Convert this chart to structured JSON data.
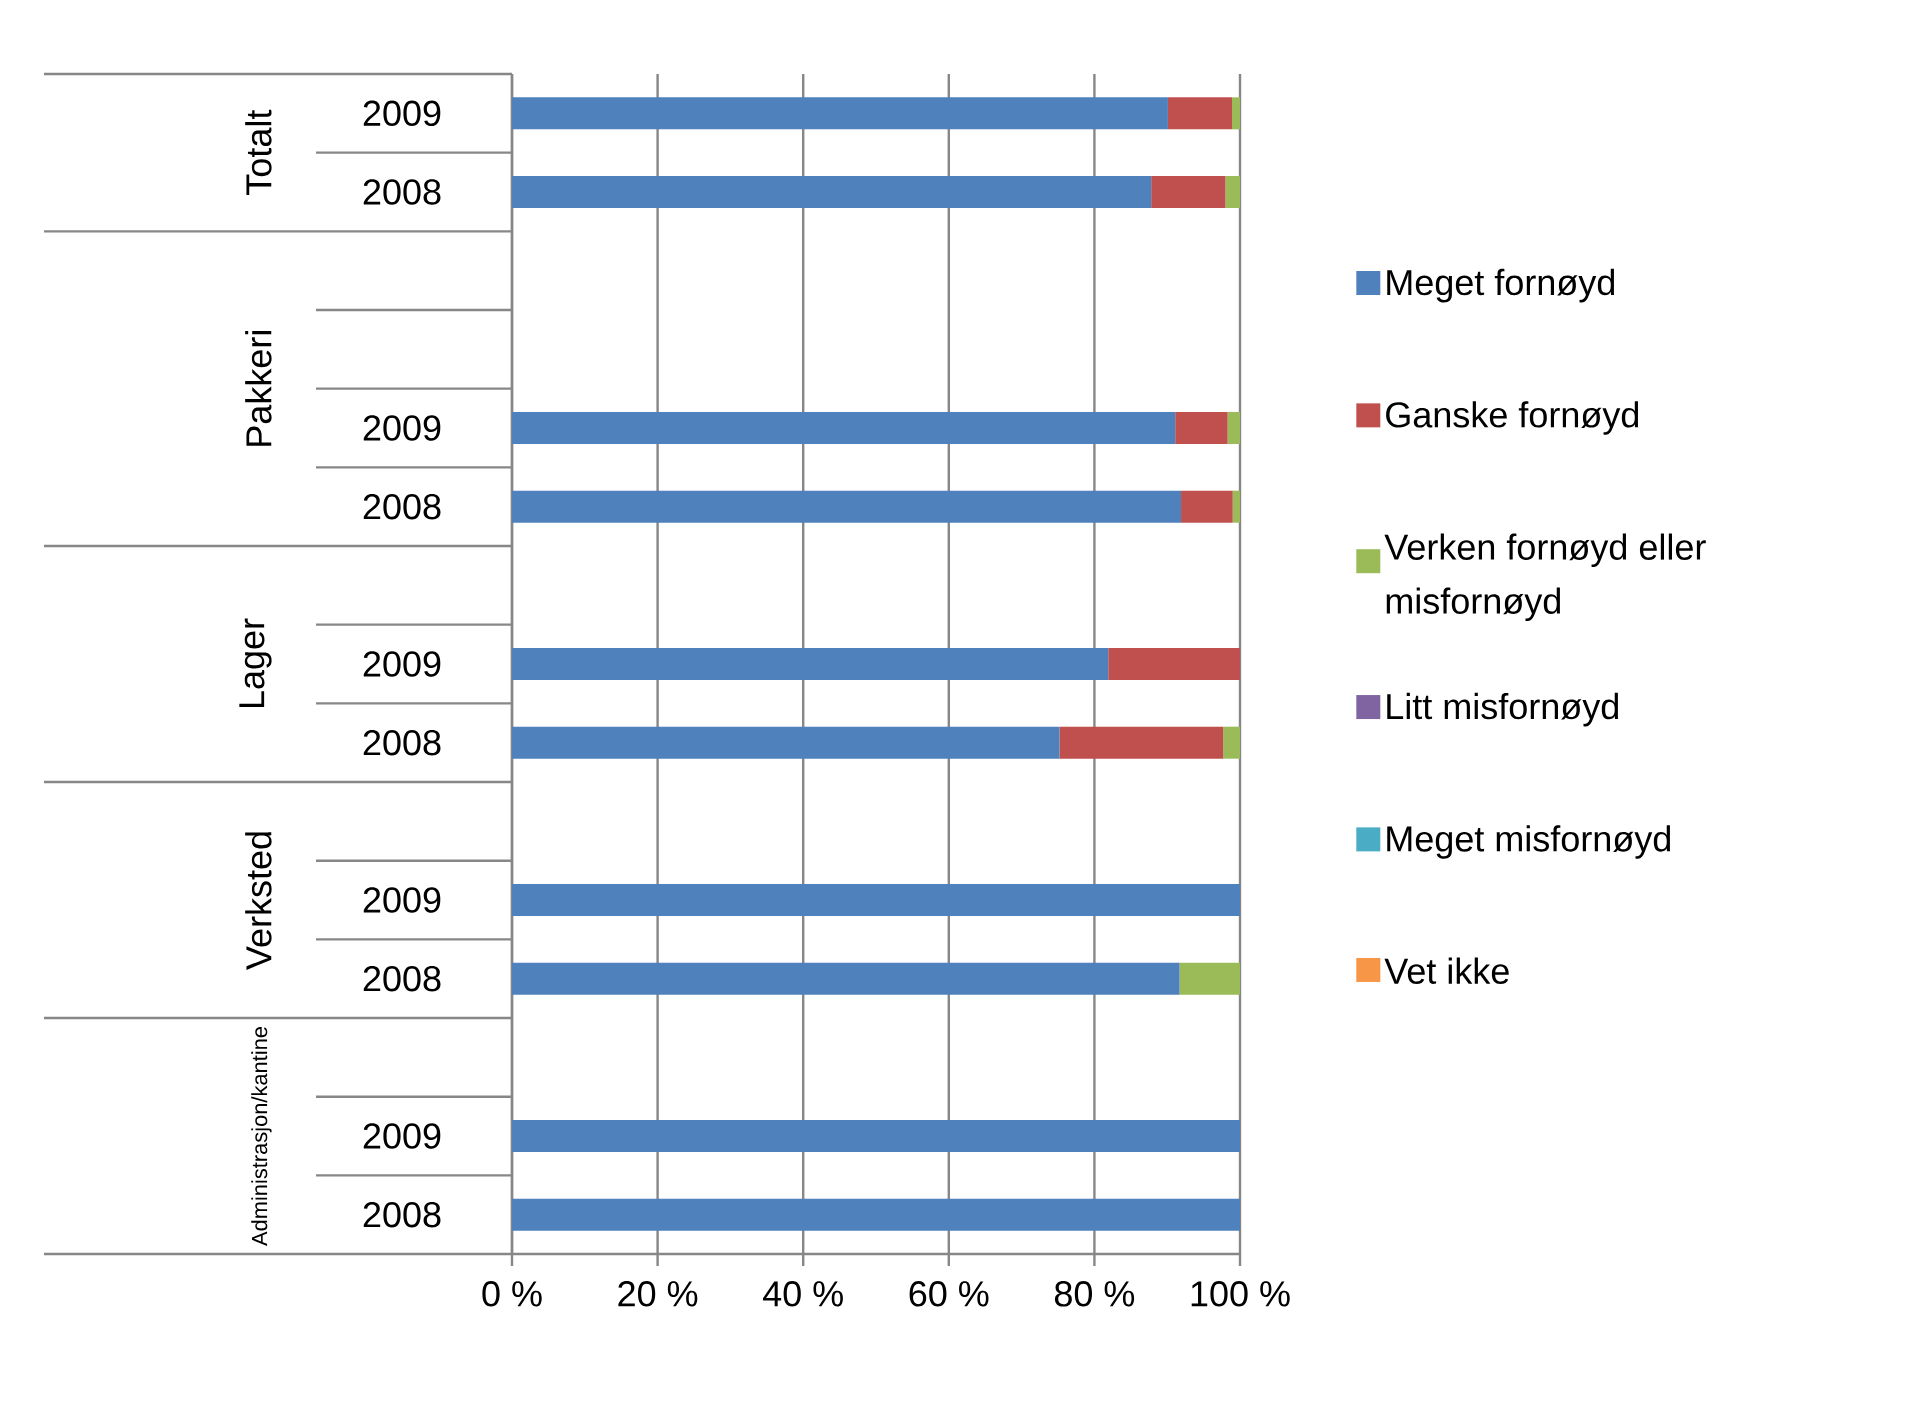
{
  "chart_data": {
    "type": "bar",
    "orientation": "horizontal",
    "stacked": true,
    "categories": [
      "2009",
      "2008",
      null,
      null,
      "2009",
      "2008",
      null,
      "2009",
      "2008",
      null,
      "2009",
      "2008",
      null,
      "2009",
      "2008"
    ],
    "annotations": [
      "Totalt",
      "Pakkeri",
      "Lager",
      "Verksted",
      "Administrasjon/kantine"
    ],
    "series": [
      {
        "name": "Meget fornøyd",
        "color": "#4f81bd",
        "values": [
          90.1,
          87.8,
          null,
          null,
          91.1,
          91.9,
          null,
          81.9,
          75.2,
          null,
          100,
          91.7,
          null,
          100,
          100
        ]
      },
      {
        "name": "Ganske fornøyd",
        "color": "#c0504d",
        "values": [
          8.8,
          10.2,
          null,
          null,
          7.2,
          7.1,
          null,
          18.1,
          22.5,
          null,
          0,
          0,
          null,
          0,
          0
        ]
      },
      {
        "name": "Verken fornøyd eller misfornøyd",
        "color": "#9bbb59",
        "values": [
          1.1,
          2.0,
          null,
          null,
          1.7,
          1.0,
          null,
          0,
          2.3,
          null,
          0,
          8.3,
          null,
          0,
          0
        ]
      },
      {
        "name": "Litt misfornøyd",
        "color": "#8064a2",
        "values": [
          0,
          0,
          null,
          null,
          0,
          0,
          null,
          0,
          0,
          null,
          0,
          0,
          null,
          0,
          0
        ]
      },
      {
        "name": "Meget misfornøyd",
        "color": "#4bacc6",
        "values": [
          0,
          0,
          null,
          null,
          0,
          0,
          null,
          0,
          0,
          null,
          0,
          0,
          null,
          0,
          0
        ]
      },
      {
        "name": "Vet ikke",
        "color": "#f79646",
        "values": [
          0,
          0,
          null,
          null,
          0,
          0,
          null,
          0,
          0,
          null,
          0,
          0,
          null,
          0,
          0
        ]
      }
    ],
    "xlim": [
      0,
      100
    ],
    "xticks": [
      {
        "value": 0,
        "label": "0 %"
      },
      {
        "value": 20,
        "label": "20 %"
      },
      {
        "value": 40,
        "label": "40 %"
      },
      {
        "value": 60,
        "label": "60 %"
      },
      {
        "value": 80,
        "label": "80 %"
      },
      {
        "value": 100,
        "label": "100 %"
      }
    ],
    "grid": "x",
    "legend": "right"
  }
}
